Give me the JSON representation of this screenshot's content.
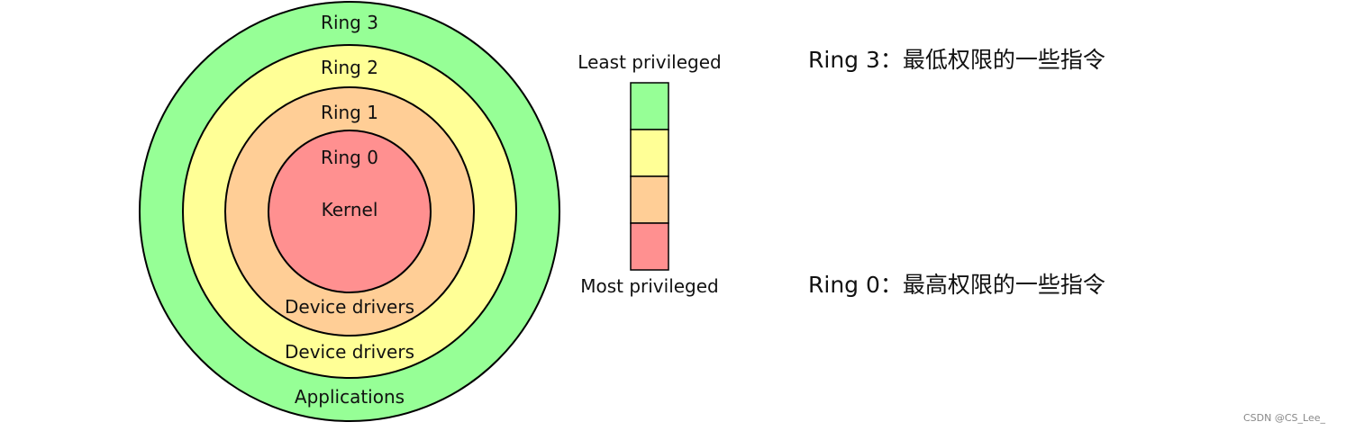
{
  "colors": {
    "ring3": "#96FF96",
    "ring2": "#FFFF96",
    "ring1": "#FFCE96",
    "ring0": "#FF9090",
    "stroke": "#000000"
  },
  "rings": {
    "ring3": {
      "title": "Ring 3",
      "role": "Applications"
    },
    "ring2": {
      "title": "Ring 2",
      "role": "Device drivers"
    },
    "ring1": {
      "title": "Ring 1",
      "role": "Device drivers"
    },
    "ring0": {
      "title": "Ring 0",
      "role": "Kernel"
    }
  },
  "scale": {
    "top_label": "Least privileged",
    "bottom_label": "Most privileged",
    "levels": [
      "ring3",
      "ring2",
      "ring1",
      "ring0"
    ]
  },
  "descriptions": {
    "ring3": {
      "title": "Ring 3",
      "sep": "：",
      "text": "最低权限的一些指令"
    },
    "ring0": {
      "title": "Ring 0",
      "sep": "：",
      "text": "最高权限的一些指令"
    }
  },
  "watermark": "CSDN @CS_Lee_"
}
